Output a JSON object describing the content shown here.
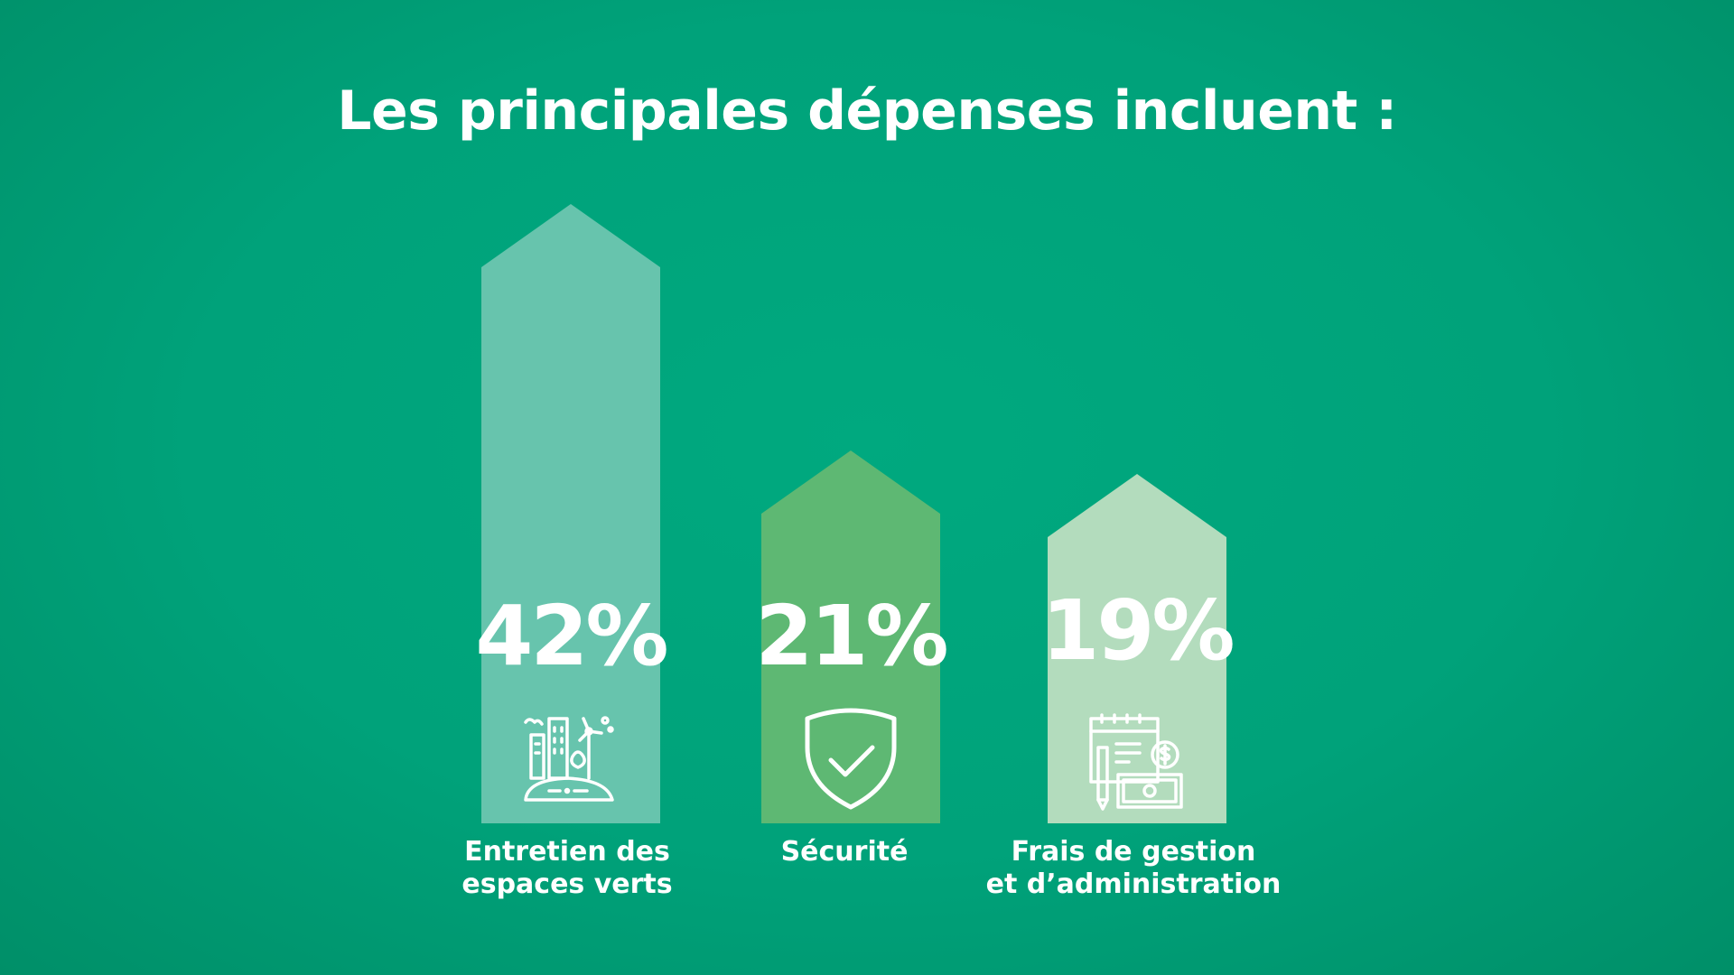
{
  "title": "Les principales dépenses incluent :",
  "chart_data": {
    "type": "bar",
    "categories": [
      [
        "Entretien des",
        "espaces verts"
      ],
      [
        "Sécurité"
      ],
      [
        "Frais de gestion",
        "et d’administration"
      ]
    ],
    "values": [
      42,
      21,
      19
    ],
    "value_labels": [
      "42%",
      "21%",
      "19%"
    ],
    "colors": [
      "#67c4ad",
      "#5eb873",
      "#b3dcbd"
    ],
    "icons": [
      "city-park-icon",
      "shield-check-icon",
      "invoice-money-icon"
    ]
  }
}
